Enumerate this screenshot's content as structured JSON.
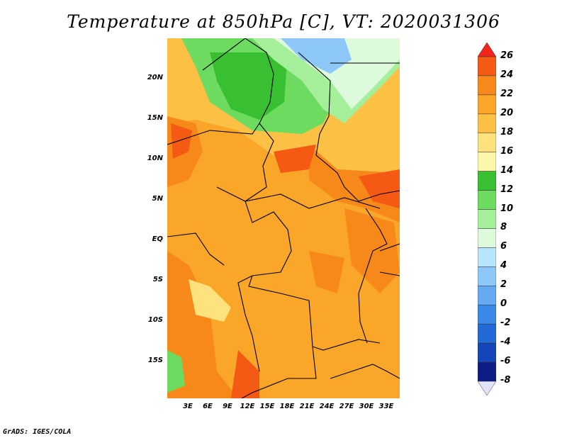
{
  "title": "Temperature at 850hPa [C], VT: 2020031306",
  "credit": "GrADS: IGES/COLA",
  "map": {
    "lat_labels": [
      "20N",
      "15N",
      "10N",
      "5N",
      "EQ",
      "5S",
      "10S",
      "15S"
    ],
    "lon_labels": [
      "3E",
      "6E",
      "9E",
      "12E",
      "15E",
      "18E",
      "21E",
      "24E",
      "27E",
      "30E",
      "33E"
    ]
  },
  "colorbar": {
    "levels": [
      "26",
      "24",
      "22",
      "20",
      "18",
      "16",
      "14",
      "12",
      "10",
      "8",
      "6",
      "4",
      "2",
      "0",
      "-2",
      "-4",
      "-6",
      "-8"
    ],
    "colors": [
      "#f2241b",
      "#f55a14",
      "#f7891a",
      "#f9a629",
      "#fcc044",
      "#fde27e",
      "#fdf7ae",
      "#38c032",
      "#6ddb5f",
      "#a5ef9a",
      "#ddfadc",
      "#b7e6fc",
      "#8ec8f8",
      "#65a9f1",
      "#3b8ae9",
      "#2369d8",
      "#1546b7",
      "#0c1d86",
      "#e3e3f7"
    ]
  }
}
